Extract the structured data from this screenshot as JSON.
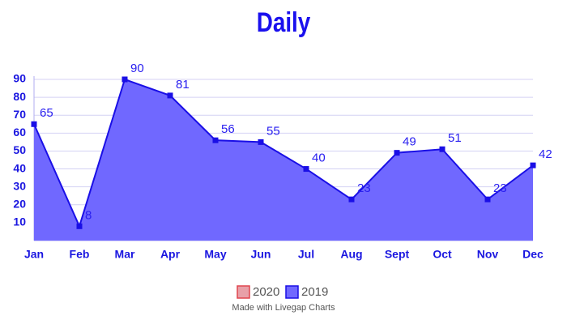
{
  "chart_data": {
    "type": "area",
    "title": "Daily",
    "categories": [
      "Jan",
      "Feb",
      "Mar",
      "Apr",
      "May",
      "Jun",
      "Jul",
      "Aug",
      "Sept",
      "Oct",
      "Nov",
      "Dec"
    ],
    "series": [
      {
        "name": "2020",
        "color": "#e0454f",
        "fill": "#e8a0a8",
        "values": [
          null,
          null,
          null,
          null,
          null,
          null,
          null,
          null,
          null,
          null,
          null,
          null
        ]
      },
      {
        "name": "2019",
        "color": "#1a0fe6",
        "fill": "#7068ff",
        "values": [
          65,
          8,
          90,
          81,
          56,
          55,
          40,
          23,
          49,
          51,
          23,
          42
        ]
      }
    ],
    "ylim": [
      0,
      90
    ],
    "yticks": [
      10,
      20,
      30,
      40,
      50,
      60,
      70,
      80,
      90
    ],
    "grid": true,
    "footer": "Made with Livegap Charts"
  }
}
